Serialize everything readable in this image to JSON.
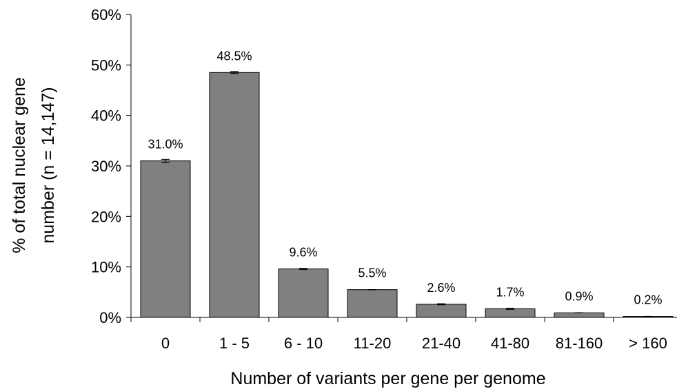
{
  "chart_data": {
    "type": "bar",
    "title": "",
    "xlabel": "Number of variants per gene per genome",
    "ylabel_line1": "% of total nuclear gene",
    "ylabel_line2": "number  (n = 14,147)",
    "categories": [
      "0",
      "1 - 5",
      "6 - 10",
      "11-20",
      "21-40",
      "41-80",
      "81-160",
      "> 160"
    ],
    "values": [
      31.0,
      48.5,
      9.6,
      5.5,
      2.6,
      1.7,
      0.9,
      0.2
    ],
    "value_labels": [
      "31.0%",
      "48.5%",
      "9.6%",
      "5.5%",
      "2.6%",
      "1.7%",
      "0.9%",
      "0.2%"
    ],
    "error": [
      0.3,
      0.2,
      0.1,
      0.0,
      0.1,
      0.1,
      0.0,
      0.0
    ],
    "ylim": [
      0,
      60
    ],
    "yticks": [
      0,
      10,
      20,
      30,
      40,
      50,
      60
    ],
    "ytick_labels": [
      "0%",
      "10%",
      "20%",
      "30%",
      "40%",
      "50%",
      "60%"
    ],
    "grid": false,
    "bar_color": "#808080"
  }
}
